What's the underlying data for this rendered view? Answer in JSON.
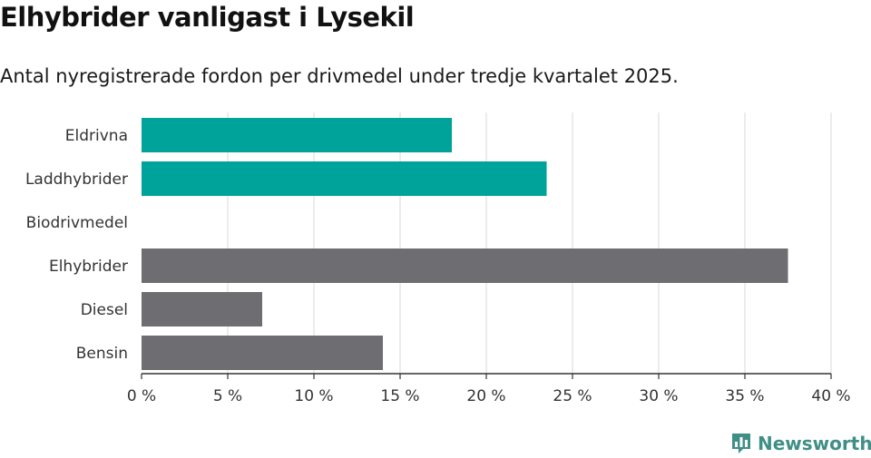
{
  "title": "Elhybrider vanligast i Lysekil",
  "subtitle": "Antal nyregistrerade fordon per drivmedel under tredje kvartalet 2025.",
  "brand": {
    "name": "Newsworthy",
    "icon": "bar-chart-logo-icon"
  },
  "colors": {
    "highlight": "#00a39a",
    "default": "#6e6d72",
    "grid": "#d9d9d9",
    "axis": "#333333"
  },
  "chart_data": {
    "type": "bar",
    "orientation": "horizontal",
    "categories": [
      "Eldrivna",
      "Laddhybrider",
      "Biodrivmedel",
      "Elhybrider",
      "Diesel",
      "Bensin"
    ],
    "values": [
      18,
      23.5,
      0,
      37.5,
      7,
      14
    ],
    "highlighted": [
      true,
      true,
      false,
      false,
      false,
      false
    ],
    "xlim": [
      0,
      40
    ],
    "xticks": [
      0,
      5,
      10,
      15,
      20,
      25,
      30,
      35,
      40
    ],
    "xtick_labels": [
      "0 %",
      "5 %",
      "10 %",
      "15 %",
      "20 %",
      "25 %",
      "30 %",
      "35 %",
      "40 %"
    ],
    "grid": true
  }
}
